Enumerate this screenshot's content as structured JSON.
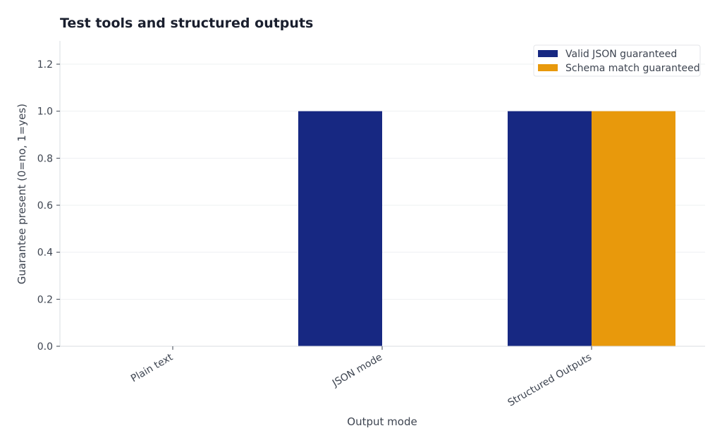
{
  "chart_data": {
    "type": "bar",
    "title": "Test tools and structured outputs",
    "xlabel": "Output mode",
    "ylabel": "Guarantee present (0=no, 1=yes)",
    "categories": [
      "Plain text",
      "JSON mode",
      "Structured Outputs"
    ],
    "series": [
      {
        "name": "Valid JSON guaranteed",
        "values": [
          0,
          1,
          1
        ],
        "color": "#172882"
      },
      {
        "name": "Schema match guaranteed",
        "values": [
          0,
          0,
          1
        ],
        "color": "#e8990c"
      }
    ],
    "ylim": [
      0,
      1.3
    ],
    "yticks": [
      0.0,
      0.2,
      0.4,
      0.6,
      0.8,
      1.0,
      1.2
    ],
    "ytick_labels": [
      "0.0",
      "0.2",
      "0.4",
      "0.6",
      "0.8",
      "1.0",
      "1.2"
    ],
    "grid": "horizontal",
    "legend_position": "top-right"
  }
}
